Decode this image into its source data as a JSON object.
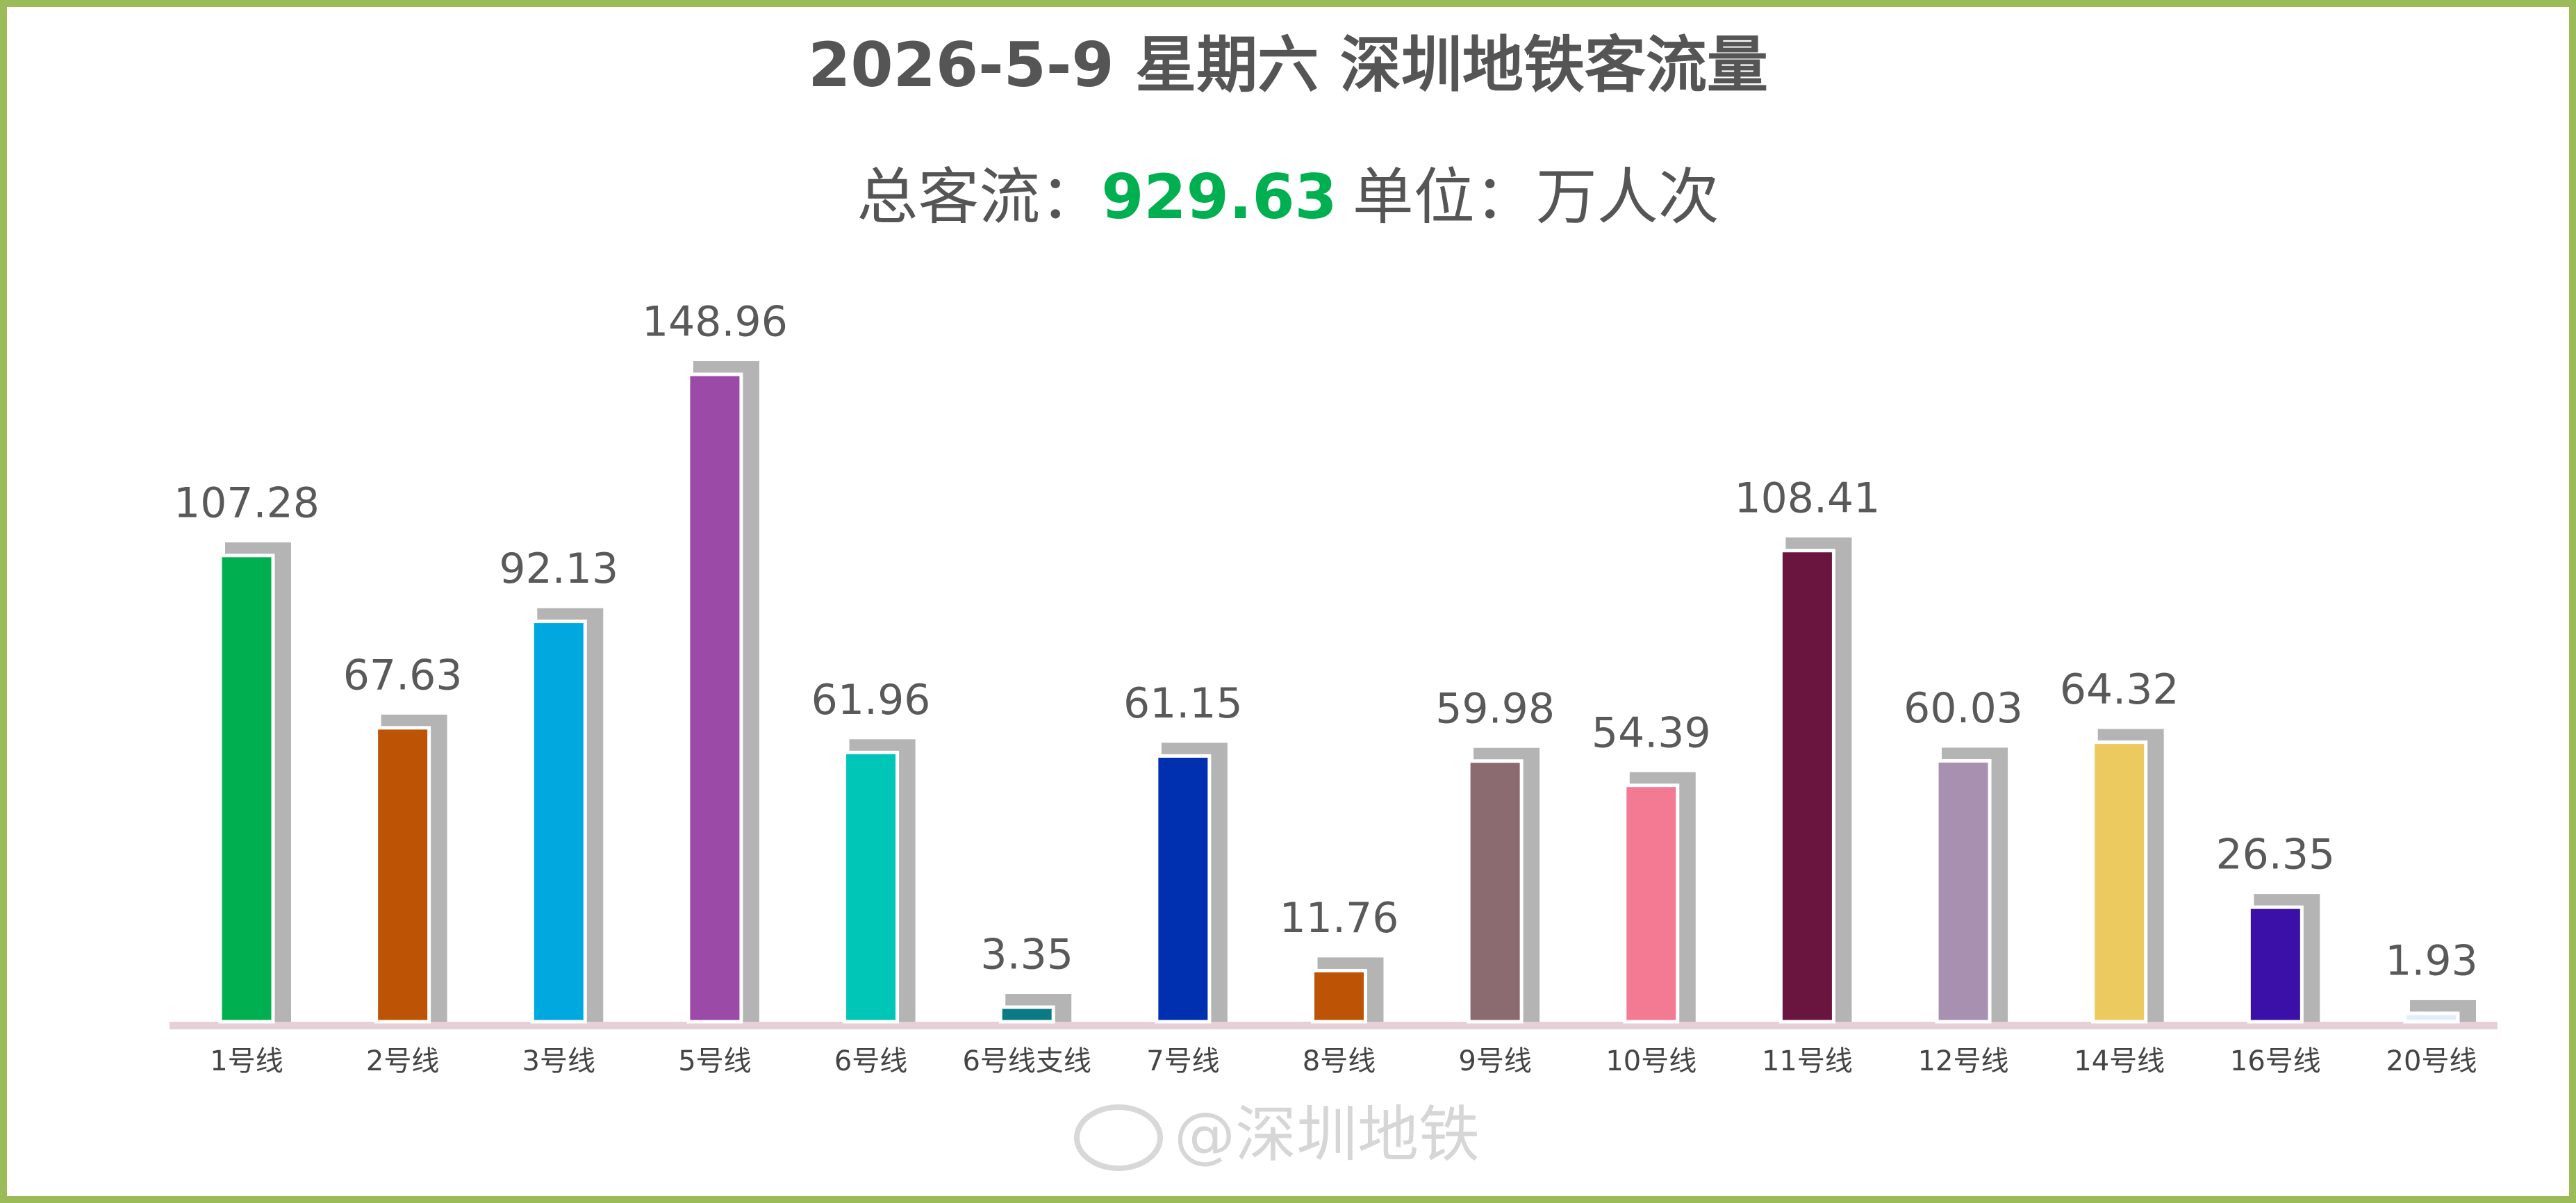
{
  "chart_data": {
    "type": "bar",
    "title": "2026-5-9 星期六  深圳地铁客流量",
    "subtitle": {
      "label": "总客流：",
      "total": 929.63,
      "unit": "单位：万人次"
    },
    "categories": [
      "1号线",
      "2号线",
      "3号线",
      "5号线",
      "6号线",
      "6号线支线",
      "7号线",
      "8号线",
      "9号线",
      "10号线",
      "11号线",
      "12号线",
      "14号线",
      "16号线",
      "20号线"
    ],
    "values": [
      107.28,
      67.63,
      92.13,
      148.96,
      61.96,
      3.35,
      61.15,
      11.76,
      59.98,
      54.39,
      108.41,
      60.03,
      64.32,
      26.35,
      1.93
    ],
    "colors": [
      "#00b050",
      "#bd5405",
      "#00a8e0",
      "#9b4aa8",
      "#00c6b8",
      "#0a7a84",
      "#0030b0",
      "#bd5405",
      "#8b6a70",
      "#f47a94",
      "#6a1440",
      "#a890b0",
      "#ecca60",
      "#3a10a8",
      "#e4eef8"
    ],
    "shadow_color": "#b4b4b4",
    "watermark": "@深圳地铁"
  }
}
